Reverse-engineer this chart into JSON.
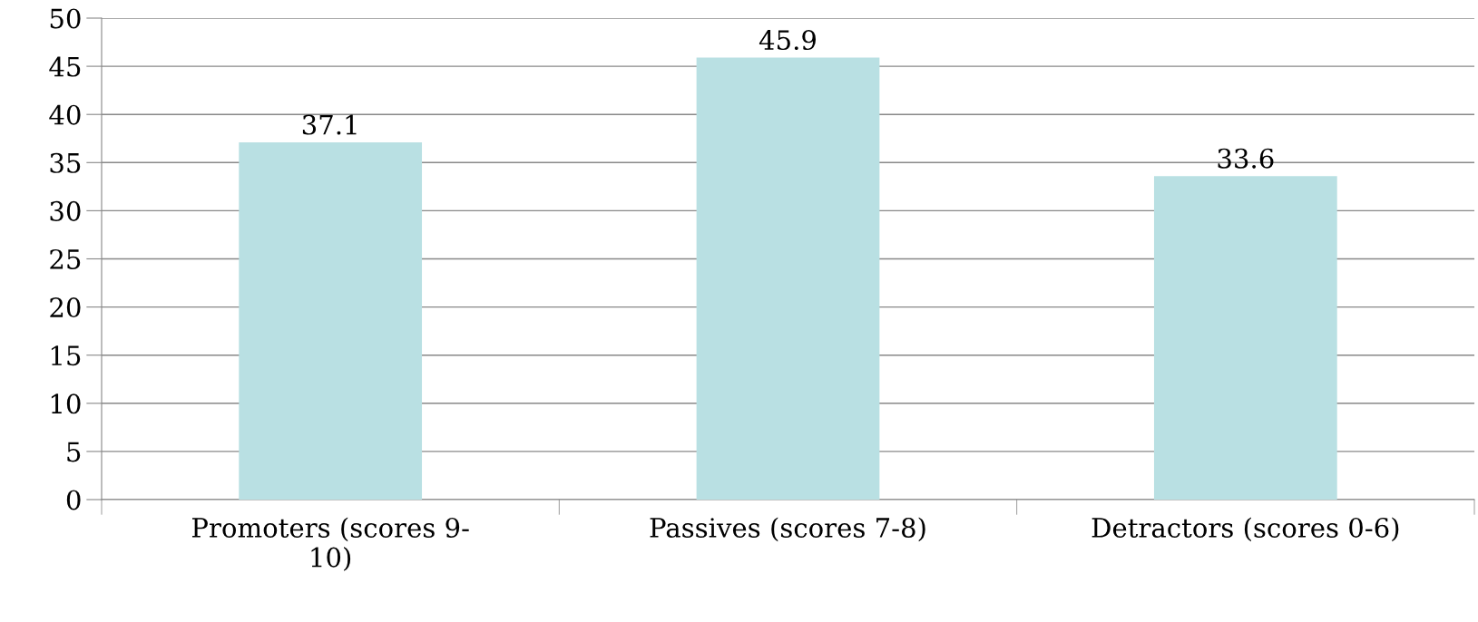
{
  "chart_data": {
    "type": "bar",
    "categories": [
      "Promoters (scores 9-\n10)",
      "Passives (scores 7-8)",
      "Detractors (scores 0-6)"
    ],
    "values": [
      37.1,
      45.9,
      33.6
    ],
    "color": "#b9e0e3",
    "ylim": [
      0,
      50
    ],
    "yticks": [
      0,
      5,
      10,
      15,
      20,
      25,
      30,
      35,
      40,
      45,
      50
    ],
    "grid": "y",
    "data_labels": true
  }
}
